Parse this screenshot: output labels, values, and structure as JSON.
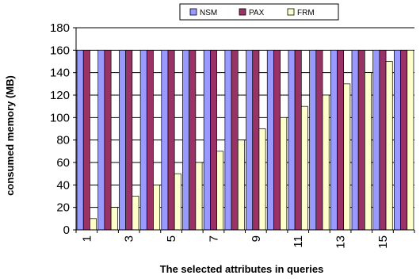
{
  "chart_data": {
    "type": "bar",
    "title": "",
    "xlabel": "The selected attributes in queries",
    "ylabel": "consumed memory (MB)",
    "ylim": [
      0,
      180
    ],
    "yticks": [
      0,
      20,
      40,
      60,
      80,
      100,
      120,
      140,
      160,
      180
    ],
    "categories": [
      "1",
      "2",
      "3",
      "4",
      "5",
      "6",
      "7",
      "8",
      "9",
      "10",
      "11",
      "12",
      "13",
      "14",
      "15",
      "16"
    ],
    "xtick_labels_shown": [
      "1",
      "3",
      "5",
      "7",
      "9",
      "11",
      "13",
      "15"
    ],
    "grid": "horizontal",
    "legend_position": "top",
    "series": [
      {
        "name": "NSM",
        "color": "#9999ff",
        "values": [
          160,
          160,
          160,
          160,
          160,
          160,
          160,
          160,
          160,
          160,
          160,
          160,
          160,
          160,
          160,
          160
        ]
      },
      {
        "name": "PAX",
        "color": "#993366",
        "values": [
          160,
          160,
          160,
          160,
          160,
          160,
          160,
          160,
          160,
          160,
          160,
          160,
          160,
          160,
          160,
          160
        ]
      },
      {
        "name": "FRM",
        "color": "#ffffcc",
        "values": [
          10,
          20,
          30,
          40,
          50,
          60,
          70,
          80,
          90,
          100,
          110,
          120,
          130,
          140,
          150,
          160
        ]
      }
    ]
  }
}
